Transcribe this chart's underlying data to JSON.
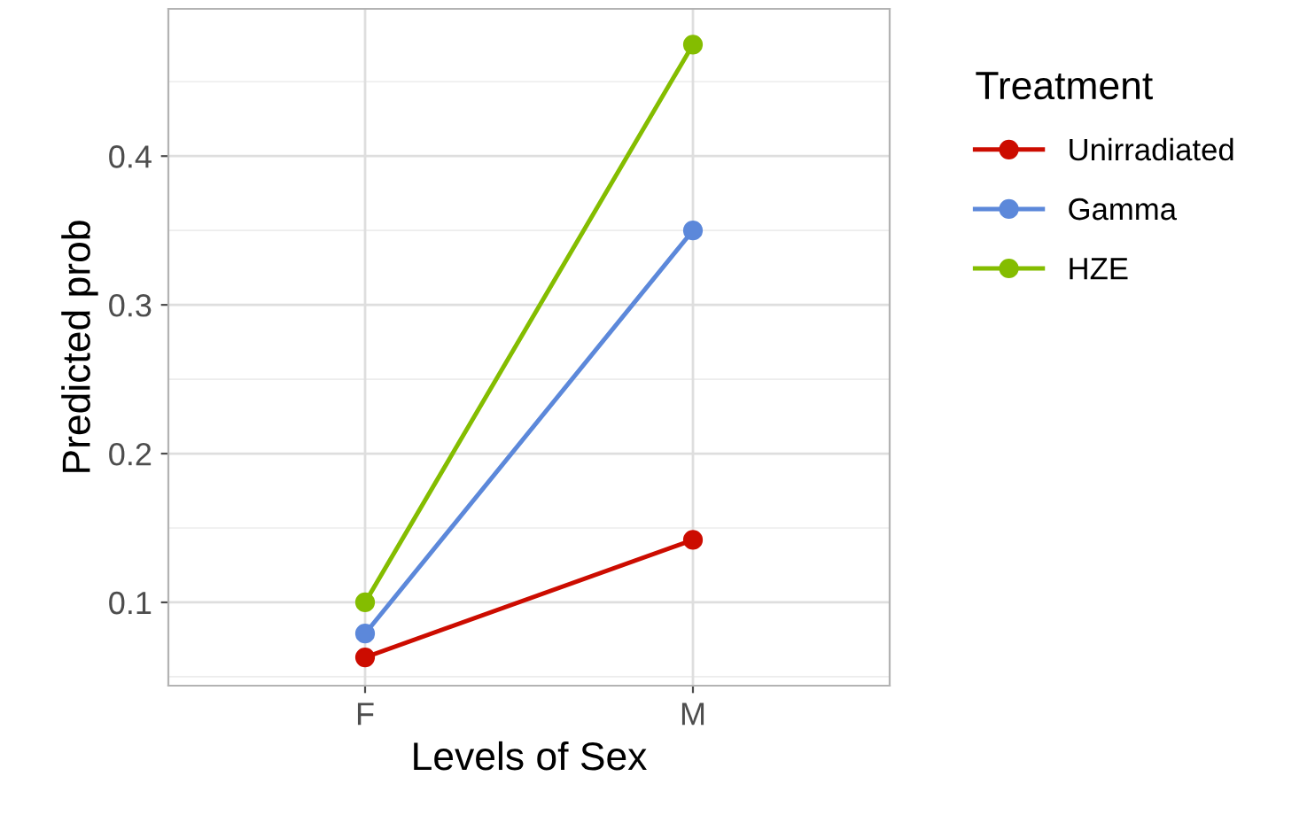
{
  "chart_data": {
    "type": "line",
    "xlabel": "Levels of Sex",
    "ylabel": "Predicted prob",
    "legend_title": "Treatment",
    "categories": [
      "F",
      "M"
    ],
    "series": [
      {
        "name": "Unirradiated",
        "color": "#cc0c00",
        "values": [
          0.063,
          0.142
        ]
      },
      {
        "name": "Gamma",
        "color": "#5c88da",
        "values": [
          0.079,
          0.35
        ]
      },
      {
        "name": "HZE",
        "color": "#84bd00",
        "values": [
          0.1,
          0.475
        ]
      }
    ],
    "ylim": [
      0.044,
      0.499
    ],
    "yticks": [
      0.1,
      0.2,
      0.3,
      0.4
    ],
    "grid": true,
    "legend": "right",
    "marker": "circle",
    "line_style": "solid"
  }
}
